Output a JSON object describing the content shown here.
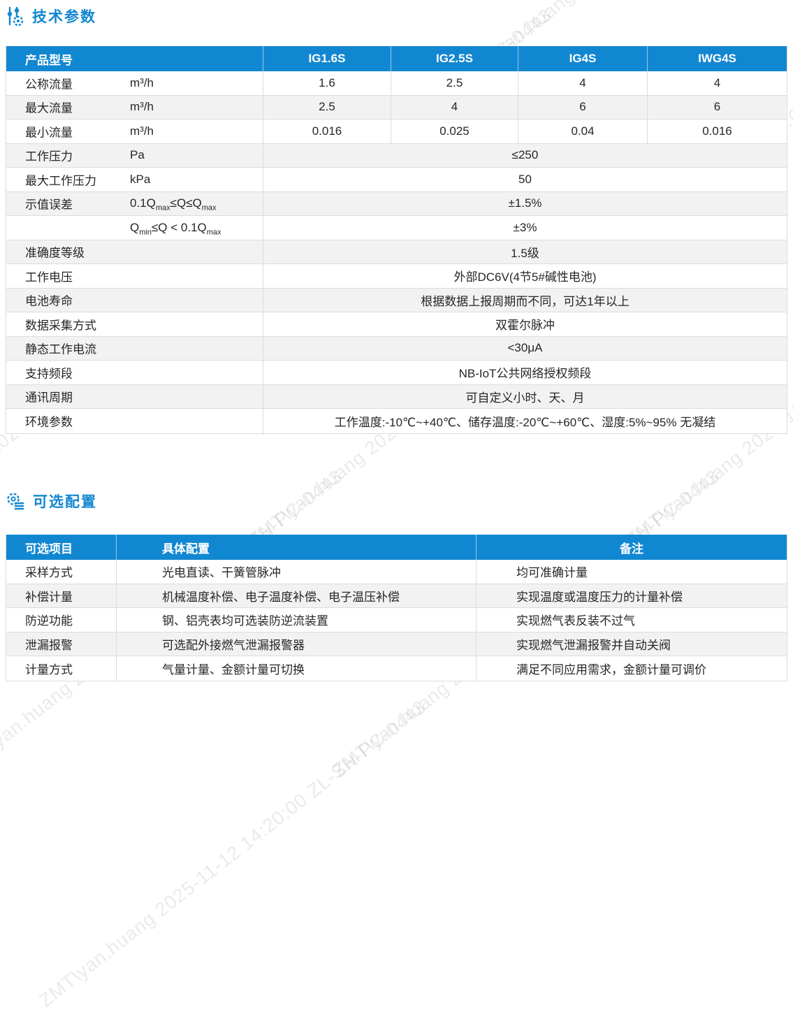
{
  "colors": {
    "accent": "#1287d1",
    "header_text": "#ffffff",
    "row_alt": "#f2f2f2",
    "border": "#dcdcdc",
    "text": "#262626"
  },
  "sections": [
    {
      "title": "技术参数",
      "icon": "sliders-gear-icon"
    },
    {
      "title": "可选配置",
      "icon": "gear-list-icon"
    }
  ],
  "table1": {
    "columns": [
      "产品型号",
      "IG1.6S",
      "IG2.5S",
      "IG4S",
      "IWG4S"
    ],
    "rows": [
      {
        "label": "公称流量",
        "unit": "m³/h",
        "values": [
          "1.6",
          "2.5",
          "4",
          "4"
        ]
      },
      {
        "label": "最大流量",
        "unit": "m³/h",
        "values": [
          "2.5",
          "4",
          "6",
          "6"
        ]
      },
      {
        "label": "最小流量",
        "unit": "m³/h",
        "values": [
          "0.016",
          "0.025",
          "0.04",
          "0.016"
        ]
      },
      {
        "label": "工作压力",
        "unit": "Pa",
        "span": "≤250"
      },
      {
        "label": "最大工作压力",
        "unit": "kPa",
        "span": "50"
      },
      {
        "label": "示值误差",
        "unit": "0.1Q{max}≤Q≤Q{max}",
        "span": "±1.5%"
      },
      {
        "label": "",
        "unit": "Q{min}≤Q < 0.1Q{max}",
        "span": "±3%"
      },
      {
        "label": "准确度等级",
        "unit": "",
        "span": "1.5级"
      },
      {
        "label": "工作电压",
        "unit": "",
        "span": "外部DC6V(4节5#碱性电池)"
      },
      {
        "label": "电池寿命",
        "unit": "",
        "span": "根据数据上报周期而不同，可达1年以上"
      },
      {
        "label": "数据采集方式",
        "unit": "",
        "span": "双霍尔脉冲"
      },
      {
        "label": "静态工作电流",
        "unit": "",
        "span": "<30μA"
      },
      {
        "label": "支持频段",
        "unit": "",
        "span": "NB-IoT公共网络授权频段"
      },
      {
        "label": "通讯周期",
        "unit": "",
        "span": "可自定义小时、天、月"
      },
      {
        "label": "环境参数",
        "unit": "",
        "span": "工作温度:-10℃~+40℃、储存温度:-20℃~+60℃、湿度:5%~95% 无凝结"
      }
    ]
  },
  "table2": {
    "columns": [
      "可选项目",
      "具体配置",
      "备注"
    ],
    "rows": [
      {
        "item": "采样方式",
        "config": "光电直读、干簧管脉冲",
        "remark": "均可准确计量"
      },
      {
        "item": "补偿计量",
        "config": "机械温度补偿、电子温度补偿、电子温压补偿",
        "remark": "实现温度或温度压力的计量补偿"
      },
      {
        "item": "防逆功能",
        "config": "钢、铝壳表均可选装防逆流装置",
        "remark": "实现燃气表反装不过气"
      },
      {
        "item": "泄漏报警",
        "config": "可选配外接燃气泄漏报警器",
        "remark": "实现燃气泄漏报警并自动关阀"
      },
      {
        "item": "计量方式",
        "config": "气量计量、金额计量可切换",
        "remark": "满足不同应用需求，金额计量可调价"
      }
    ]
  },
  "watermark": {
    "text": "ZMT\\yan.huang 2025-11-12 14:20:00 ZL-SH-PC-0443"
  }
}
